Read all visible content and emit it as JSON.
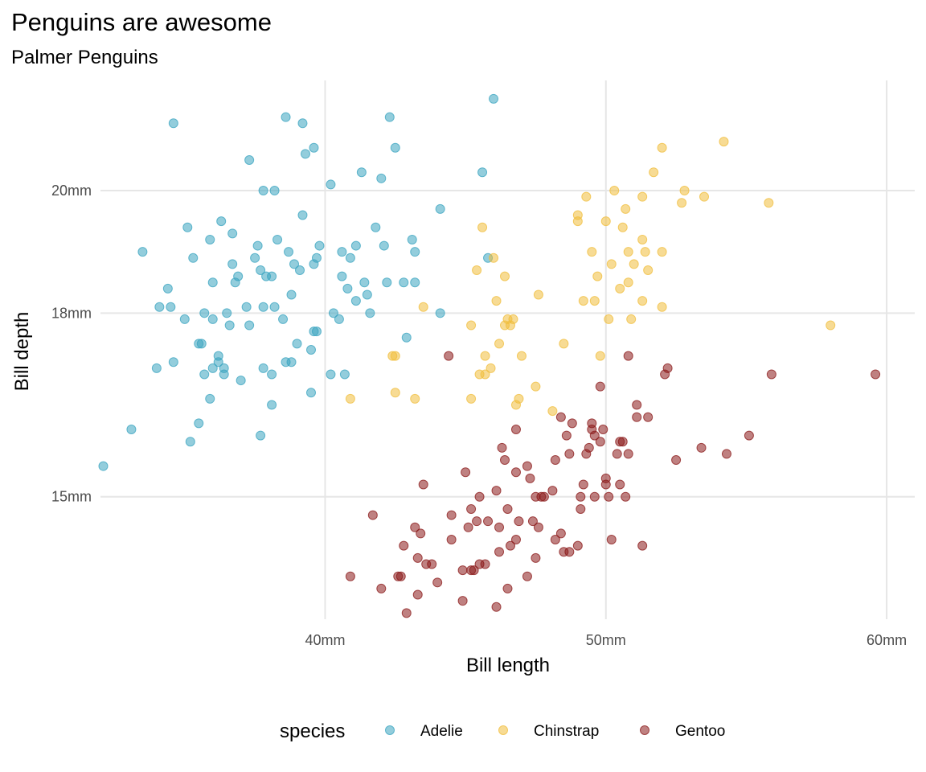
{
  "chart_data": {
    "type": "scatter",
    "title": "Penguins are awesome",
    "subtitle": "Palmer Penguins",
    "xlabel": "Bill length",
    "ylabel": "Bill depth",
    "xlim": [
      32,
      61
    ],
    "ylim": [
      13.0,
      21.8
    ],
    "x_ticks": [
      {
        "value": 40,
        "label": "40mm"
      },
      {
        "value": 50,
        "label": "50mm"
      },
      {
        "value": 60,
        "label": "60mm"
      }
    ],
    "y_ticks": [
      {
        "value": 15,
        "label": "15mm"
      },
      {
        "value": 18,
        "label": "18mm"
      },
      {
        "value": 20,
        "label": "20mm"
      }
    ],
    "grid": true,
    "legend": {
      "title": "species",
      "position": "bottom"
    },
    "series": [
      {
        "name": "Adelie",
        "color": "#3AA4C0",
        "points": [
          [
            32.1,
            15.5
          ],
          [
            33.1,
            16.1
          ],
          [
            33.5,
            19.0
          ],
          [
            34.0,
            17.1
          ],
          [
            34.1,
            18.1
          ],
          [
            34.4,
            18.4
          ],
          [
            34.5,
            18.1
          ],
          [
            34.6,
            21.1
          ],
          [
            34.6,
            17.2
          ],
          [
            35.0,
            17.9
          ],
          [
            35.1,
            19.4
          ],
          [
            35.2,
            15.9
          ],
          [
            35.3,
            18.9
          ],
          [
            35.5,
            16.2
          ],
          [
            35.5,
            17.5
          ],
          [
            35.6,
            17.5
          ],
          [
            35.7,
            17.0
          ],
          [
            35.7,
            18.0
          ],
          [
            35.9,
            16.6
          ],
          [
            35.9,
            19.2
          ],
          [
            36.0,
            17.1
          ],
          [
            36.0,
            18.5
          ],
          [
            36.0,
            17.9
          ],
          [
            36.2,
            17.3
          ],
          [
            36.2,
            17.2
          ],
          [
            36.3,
            19.5
          ],
          [
            36.4,
            17.1
          ],
          [
            36.4,
            17.0
          ],
          [
            36.5,
            18.0
          ],
          [
            36.6,
            17.8
          ],
          [
            36.7,
            18.8
          ],
          [
            36.7,
            19.3
          ],
          [
            36.8,
            18.5
          ],
          [
            36.9,
            18.6
          ],
          [
            37.0,
            16.9
          ],
          [
            37.2,
            18.1
          ],
          [
            37.3,
            17.8
          ],
          [
            37.3,
            20.5
          ],
          [
            37.5,
            18.9
          ],
          [
            37.6,
            19.1
          ],
          [
            37.7,
            18.7
          ],
          [
            37.7,
            16.0
          ],
          [
            37.8,
            18.1
          ],
          [
            37.8,
            17.1
          ],
          [
            37.8,
            20.0
          ],
          [
            37.9,
            18.6
          ],
          [
            38.1,
            18.6
          ],
          [
            38.1,
            16.5
          ],
          [
            38.1,
            17.0
          ],
          [
            38.2,
            18.1
          ],
          [
            38.2,
            20.0
          ],
          [
            38.3,
            19.2
          ],
          [
            38.5,
            17.9
          ],
          [
            38.6,
            21.2
          ],
          [
            38.6,
            17.2
          ],
          [
            38.7,
            19.0
          ],
          [
            38.8,
            17.2
          ],
          [
            38.8,
            18.3
          ],
          [
            38.9,
            18.8
          ],
          [
            39.0,
            17.5
          ],
          [
            39.1,
            18.7
          ],
          [
            39.2,
            19.6
          ],
          [
            39.2,
            21.1
          ],
          [
            39.3,
            20.6
          ],
          [
            39.5,
            17.4
          ],
          [
            39.5,
            16.7
          ],
          [
            39.6,
            18.8
          ],
          [
            39.6,
            20.7
          ],
          [
            39.6,
            17.7
          ],
          [
            39.7,
            17.7
          ],
          [
            39.7,
            18.9
          ],
          [
            39.8,
            19.1
          ],
          [
            40.2,
            17.0
          ],
          [
            40.2,
            20.1
          ],
          [
            40.3,
            18.0
          ],
          [
            40.5,
            17.9
          ],
          [
            40.6,
            18.6
          ],
          [
            40.6,
            19.0
          ],
          [
            40.7,
            17.0
          ],
          [
            40.8,
            18.4
          ],
          [
            40.9,
            18.9
          ],
          [
            41.1,
            19.1
          ],
          [
            41.1,
            18.2
          ],
          [
            41.3,
            20.3
          ],
          [
            41.4,
            18.5
          ],
          [
            41.5,
            18.3
          ],
          [
            41.6,
            18.0
          ],
          [
            41.8,
            19.4
          ],
          [
            42.0,
            20.2
          ],
          [
            42.1,
            19.1
          ],
          [
            42.2,
            18.5
          ],
          [
            42.3,
            21.2
          ],
          [
            42.5,
            20.7
          ],
          [
            42.8,
            18.5
          ],
          [
            42.9,
            17.6
          ],
          [
            43.1,
            19.2
          ],
          [
            43.2,
            19.0
          ],
          [
            43.2,
            18.5
          ],
          [
            44.1,
            19.7
          ],
          [
            44.1,
            18.0
          ],
          [
            45.6,
            20.3
          ],
          [
            45.8,
            18.9
          ],
          [
            46.0,
            21.5
          ]
        ]
      },
      {
        "name": "Chinstrap",
        "color": "#F0BE3C",
        "points": [
          [
            40.9,
            16.6
          ],
          [
            42.4,
            17.3
          ],
          [
            42.5,
            16.7
          ],
          [
            42.5,
            17.3
          ],
          [
            43.2,
            16.6
          ],
          [
            43.5,
            18.1
          ],
          [
            45.2,
            16.6
          ],
          [
            45.2,
            17.8
          ],
          [
            45.4,
            18.7
          ],
          [
            45.5,
            17.0
          ],
          [
            45.6,
            19.4
          ],
          [
            45.7,
            17.0
          ],
          [
            45.7,
            17.3
          ],
          [
            45.9,
            17.1
          ],
          [
            46.0,
            18.9
          ],
          [
            46.1,
            18.2
          ],
          [
            46.2,
            17.5
          ],
          [
            46.4,
            18.6
          ],
          [
            46.4,
            17.8
          ],
          [
            46.5,
            17.9
          ],
          [
            46.6,
            17.8
          ],
          [
            46.7,
            17.9
          ],
          [
            46.8,
            16.5
          ],
          [
            46.9,
            16.6
          ],
          [
            47.0,
            17.3
          ],
          [
            47.5,
            16.8
          ],
          [
            47.6,
            18.3
          ],
          [
            48.1,
            16.4
          ],
          [
            48.5,
            17.5
          ],
          [
            49.0,
            19.5
          ],
          [
            49.0,
            19.6
          ],
          [
            49.2,
            18.2
          ],
          [
            49.3,
            19.9
          ],
          [
            49.5,
            19.0
          ],
          [
            49.6,
            18.2
          ],
          [
            49.7,
            18.6
          ],
          [
            49.8,
            17.3
          ],
          [
            50.0,
            19.5
          ],
          [
            50.1,
            17.9
          ],
          [
            50.2,
            18.8
          ],
          [
            50.3,
            20.0
          ],
          [
            50.5,
            18.4
          ],
          [
            50.6,
            19.4
          ],
          [
            50.7,
            19.7
          ],
          [
            50.8,
            18.5
          ],
          [
            50.8,
            19.0
          ],
          [
            50.9,
            17.9
          ],
          [
            51.0,
            18.8
          ],
          [
            51.3,
            18.2
          ],
          [
            51.3,
            19.2
          ],
          [
            51.3,
            19.9
          ],
          [
            51.4,
            19.0
          ],
          [
            51.5,
            18.7
          ],
          [
            51.7,
            20.3
          ],
          [
            52.0,
            18.1
          ],
          [
            52.0,
            19.0
          ],
          [
            52.0,
            20.7
          ],
          [
            52.7,
            19.8
          ],
          [
            52.8,
            20.0
          ],
          [
            53.5,
            19.9
          ],
          [
            54.2,
            20.8
          ],
          [
            55.8,
            19.8
          ],
          [
            58.0,
            17.8
          ]
        ]
      },
      {
        "name": "Gentoo",
        "color": "#8B1A1A",
        "points": [
          [
            40.9,
            13.7
          ],
          [
            41.7,
            14.7
          ],
          [
            42.0,
            13.5
          ],
          [
            42.6,
            13.7
          ],
          [
            42.7,
            13.7
          ],
          [
            42.8,
            14.2
          ],
          [
            42.9,
            13.1
          ],
          [
            43.2,
            14.5
          ],
          [
            43.3,
            13.4
          ],
          [
            43.3,
            14.0
          ],
          [
            43.4,
            14.4
          ],
          [
            43.5,
            15.2
          ],
          [
            43.6,
            13.9
          ],
          [
            43.8,
            13.9
          ],
          [
            44.0,
            13.6
          ],
          [
            44.4,
            17.3
          ],
          [
            44.5,
            14.7
          ],
          [
            44.5,
            14.3
          ],
          [
            44.9,
            13.8
          ],
          [
            44.9,
            13.3
          ],
          [
            45.0,
            15.4
          ],
          [
            45.1,
            14.5
          ],
          [
            45.2,
            13.8
          ],
          [
            45.2,
            14.8
          ],
          [
            45.3,
            13.8
          ],
          [
            45.4,
            14.6
          ],
          [
            45.5,
            13.9
          ],
          [
            45.5,
            15.0
          ],
          [
            45.7,
            13.9
          ],
          [
            45.8,
            14.6
          ],
          [
            46.1,
            13.2
          ],
          [
            46.1,
            15.1
          ],
          [
            46.2,
            14.5
          ],
          [
            46.2,
            14.1
          ],
          [
            46.3,
            15.8
          ],
          [
            46.4,
            15.6
          ],
          [
            46.5,
            13.5
          ],
          [
            46.5,
            14.8
          ],
          [
            46.6,
            14.2
          ],
          [
            46.8,
            15.4
          ],
          [
            46.8,
            14.3
          ],
          [
            46.8,
            16.1
          ],
          [
            46.9,
            14.6
          ],
          [
            47.2,
            13.7
          ],
          [
            47.2,
            15.5
          ],
          [
            47.3,
            15.3
          ],
          [
            47.4,
            14.6
          ],
          [
            47.5,
            14.0
          ],
          [
            47.5,
            15.0
          ],
          [
            47.6,
            14.5
          ],
          [
            47.7,
            15.0
          ],
          [
            47.8,
            15.0
          ],
          [
            48.1,
            15.1
          ],
          [
            48.2,
            14.3
          ],
          [
            48.2,
            15.6
          ],
          [
            48.4,
            14.4
          ],
          [
            48.4,
            16.3
          ],
          [
            48.5,
            14.1
          ],
          [
            48.6,
            16.0
          ],
          [
            48.7,
            14.1
          ],
          [
            48.7,
            15.7
          ],
          [
            48.8,
            16.2
          ],
          [
            49.0,
            14.2
          ],
          [
            49.1,
            14.8
          ],
          [
            49.1,
            15.0
          ],
          [
            49.2,
            15.2
          ],
          [
            49.3,
            15.7
          ],
          [
            49.4,
            15.8
          ],
          [
            49.5,
            16.1
          ],
          [
            49.5,
            16.2
          ],
          [
            49.6,
            16.0
          ],
          [
            49.6,
            15.0
          ],
          [
            49.8,
            16.8
          ],
          [
            49.8,
            15.9
          ],
          [
            49.9,
            16.1
          ],
          [
            50.0,
            15.2
          ],
          [
            50.0,
            15.3
          ],
          [
            50.1,
            15.0
          ],
          [
            50.2,
            14.3
          ],
          [
            50.4,
            15.7
          ],
          [
            50.5,
            15.2
          ],
          [
            50.5,
            15.9
          ],
          [
            50.6,
            15.9
          ],
          [
            50.7,
            15.0
          ],
          [
            50.8,
            15.7
          ],
          [
            50.8,
            17.3
          ],
          [
            51.1,
            16.3
          ],
          [
            51.1,
            16.5
          ],
          [
            51.3,
            14.2
          ],
          [
            51.5,
            16.3
          ],
          [
            52.1,
            17.0
          ],
          [
            52.2,
            17.1
          ],
          [
            52.5,
            15.6
          ],
          [
            53.4,
            15.8
          ],
          [
            54.3,
            15.7
          ],
          [
            55.1,
            16.0
          ],
          [
            55.9,
            17.0
          ],
          [
            59.6,
            17.0
          ]
        ]
      }
    ]
  }
}
